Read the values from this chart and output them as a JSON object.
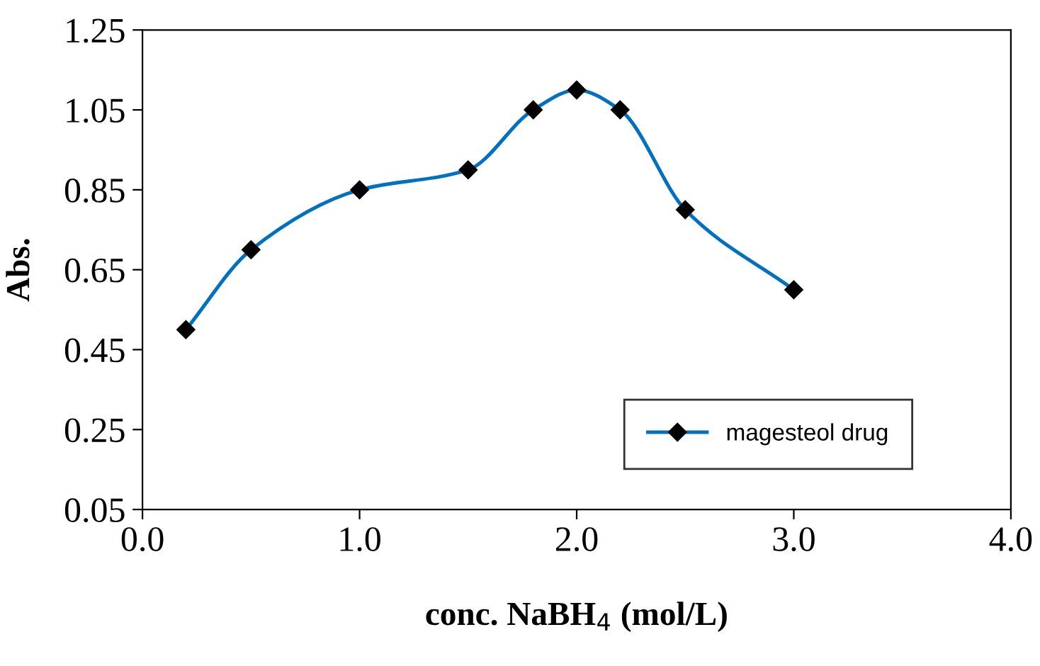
{
  "chart_data": {
    "type": "line",
    "xlabel": "conc. NaBH$_{4}$ (mol/L)",
    "ylabel": "Abs.",
    "x": [
      0.2,
      0.5,
      1.0,
      1.5,
      1.8,
      2.0,
      2.2,
      2.5,
      3.0
    ],
    "series": [
      {
        "name": "magesteol drug",
        "color": "#0070c0",
        "values": [
          0.5,
          0.7,
          0.85,
          0.9,
          1.05,
          1.1,
          1.05,
          0.8,
          0.6
        ]
      }
    ],
    "xlim": [
      0.0,
      4.0
    ],
    "xticks": [
      {
        "value": 0,
        "label": "0.0"
      },
      {
        "value": 1,
        "label": "1.0"
      },
      {
        "value": 2,
        "label": "2.0"
      },
      {
        "value": 3,
        "label": "3.0"
      },
      {
        "value": 4,
        "label": "4.0"
      }
    ],
    "ylim": [
      0.05,
      1.25
    ],
    "yticks": [
      0.05,
      0.25,
      0.45,
      0.65,
      0.85,
      1.05,
      1.25
    ],
    "marker": "diamond",
    "line_style": "solid",
    "grid": false,
    "legend": "bottom right"
  }
}
